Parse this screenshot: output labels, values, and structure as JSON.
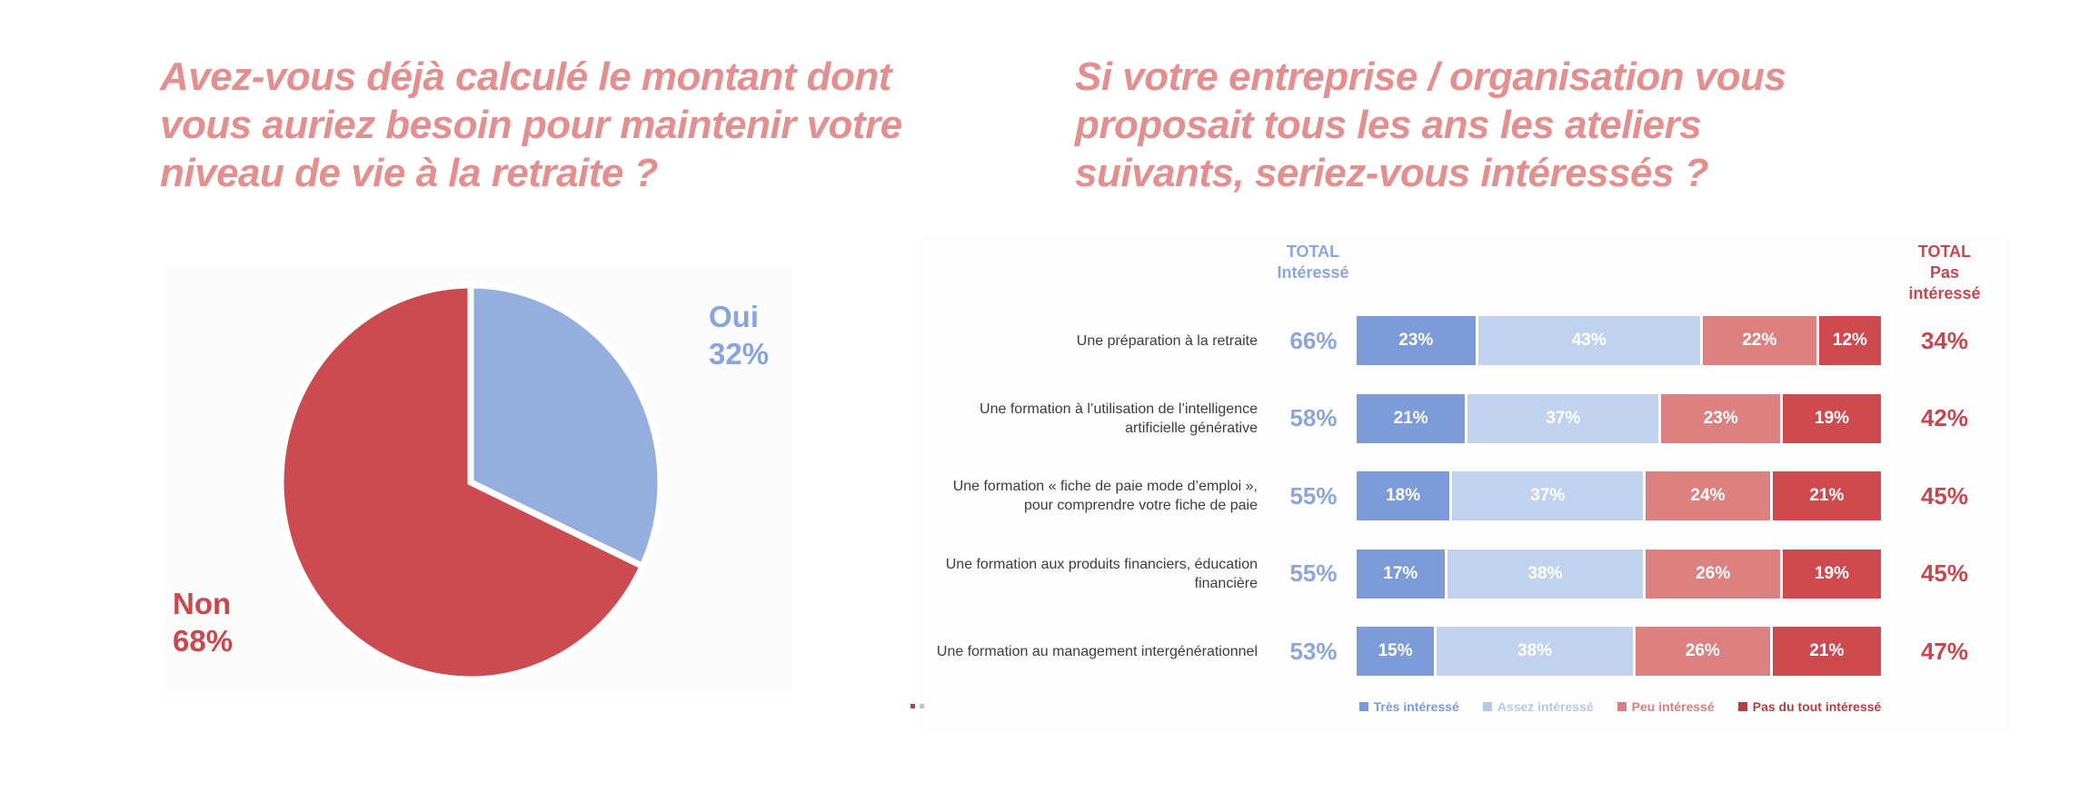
{
  "page": {
    "background": "#ffffff"
  },
  "left_panel": {
    "title": "Avez-vous déjà calculé le montant dont vous auriez besoin pour maintenir votre niveau de vie à la retraite ?",
    "title_lines": [
      "Avez-vous déjà calculé le montant dont",
      "vous auriez besoin pour maintenir votre",
      "niveau de vie à la retraite ?"
    ],
    "title_color": "#e48f8f",
    "slice_labels": [
      {
        "label": "Oui",
        "value": "32%",
        "text_color": "#88a5db"
      },
      {
        "label": "Non",
        "value": "68%",
        "text_color": "#c8484e"
      }
    ]
  },
  "right_panel": {
    "title": "Si votre entreprise / organisation vous proposait tous les ans les ateliers suivants, seriez-vous intéressés ?",
    "title_lines": [
      "Si votre entreprise / organisation vous",
      "proposait tous les ans les ateliers",
      "suivants, seriez-vous intéressés ?"
    ],
    "title_color": "#e48f8f",
    "header_interested": {
      "lines": [
        "TOTAL",
        "Intéressé"
      ],
      "color": "#8ca6db"
    },
    "header_not_interested": {
      "lines": [
        "TOTAL",
        "Pas",
        "intéressé"
      ],
      "color": "#c4494f"
    }
  },
  "chart_data": [
    {
      "type": "pie",
      "title": "Avez-vous déjà calculé le montant dont vous auriez besoin pour maintenir votre niveau de vie à la retraite ?",
      "labels": [
        "Oui",
        "Non"
      ],
      "values": [
        32,
        68
      ],
      "colors": [
        "#94aedf",
        "#cb4b50"
      ],
      "start_angle_deg": 0,
      "direction": "clockwise",
      "separator_color": "#ffffff"
    },
    {
      "type": "bar",
      "subtype": "stacked-horizontal",
      "title": "Si votre entreprise / organisation vous proposait tous les ans les ateliers suivants, seriez-vous intéressés ?",
      "categories": [
        "Une préparation à la retraite",
        "Une formation à l’utilisation de l’intelligence artificielle générative",
        "Une formation « fiche de paie mode d’emploi », pour comprendre votre fiche de paie",
        "Une formation aux produits financiers, éducation financière",
        "Une formation au management intergénérationnel"
      ],
      "series": [
        {
          "name": "Très intéressé",
          "color": "#7c9bd8",
          "legend_color": "#7c9bd8",
          "values": [
            23,
            21,
            18,
            17,
            15
          ]
        },
        {
          "name": "Assez intéressé",
          "color": "#c0d2ee",
          "legend_color": "#b5c9e8",
          "values": [
            43,
            37,
            37,
            38,
            38
          ]
        },
        {
          "name": "Peu intéressé",
          "color": "#dc8080",
          "legend_color": "#d97f7f",
          "values": [
            22,
            23,
            24,
            26,
            26
          ]
        },
        {
          "name": "Pas du tout intéressé",
          "color": "#cf4a4e",
          "legend_color": "#b04048",
          "values": [
            12,
            19,
            21,
            19,
            21
          ]
        }
      ],
      "totals_interested": [
        66,
        58,
        55,
        55,
        53
      ],
      "totals_interested_color": "#8ca6db",
      "totals_not_interested": [
        34,
        42,
        45,
        45,
        47
      ],
      "totals_not_interested_color": "#c4494f",
      "xlim": [
        0,
        100
      ],
      "value_label_suffix": "%",
      "legend_position": "bottom"
    }
  ]
}
